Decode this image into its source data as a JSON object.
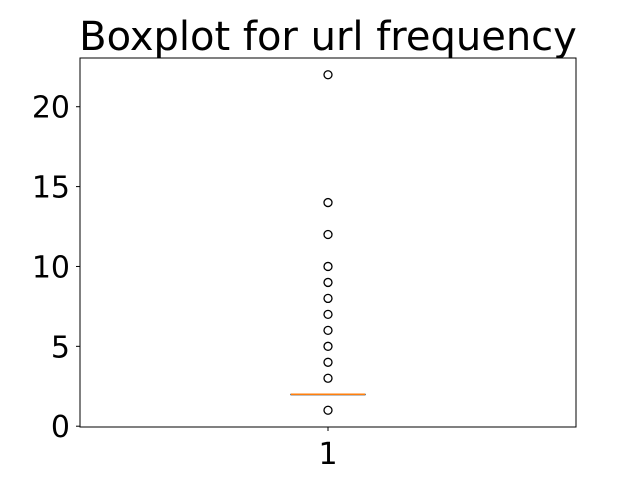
{
  "chart_data": {
    "type": "boxplot",
    "title": "Boxplot for url frequency",
    "xlabel": "",
    "ylabel": "",
    "categories": [
      "1"
    ],
    "ylim": [
      -0.05,
      23.05
    ],
    "yticks": [
      0,
      5,
      10,
      15,
      20
    ],
    "ytick_labels": [
      "0",
      "5",
      "10",
      "15",
      "20"
    ],
    "grid": false,
    "box": {
      "q1": 2,
      "median": 2,
      "q3": 2,
      "whisker_low": 2,
      "whisker_high": 2
    },
    "outliers": [
      1,
      3,
      4,
      5,
      6,
      7,
      8,
      9,
      10,
      12,
      14,
      22
    ],
    "colors": {
      "median": "#ff7f0e",
      "box": "#000000",
      "outlier_edge": "#000000"
    }
  }
}
